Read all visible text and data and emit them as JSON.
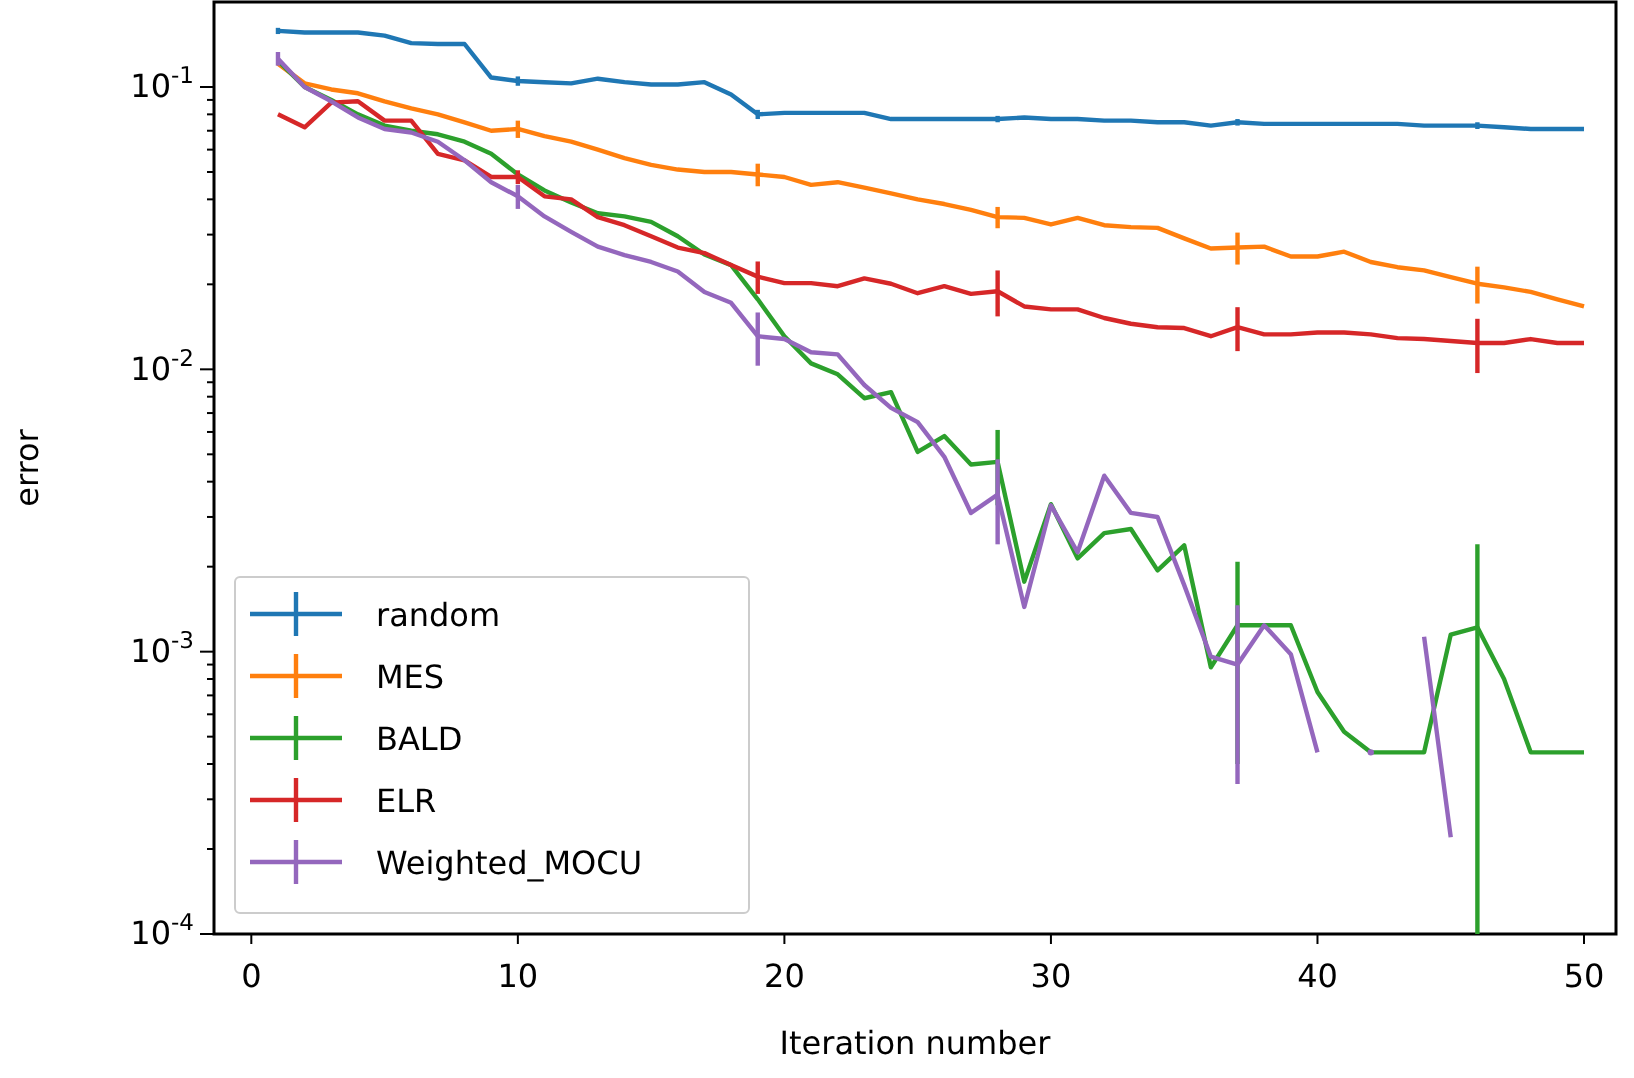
{
  "chart_data": {
    "type": "line",
    "xlabel": "Iteration number",
    "ylabel": "error",
    "log": "y",
    "legend": "bottom left",
    "grid": false,
    "marker": "none",
    "x": [
      1,
      2,
      3,
      4,
      5,
      6,
      7,
      8,
      9,
      10,
      11,
      12,
      13,
      14,
      15,
      16,
      17,
      18,
      19,
      20,
      21,
      22,
      23,
      24,
      25,
      26,
      27,
      28,
      29,
      30,
      31,
      32,
      33,
      34,
      35,
      36,
      37,
      38,
      39,
      40,
      41,
      42,
      43,
      44,
      45,
      46,
      47,
      48,
      49,
      50
    ],
    "xlim": [
      -1.4,
      51.2
    ],
    "xticks": [
      0,
      10,
      20,
      30,
      40,
      50
    ],
    "ylim": [
      0.0001,
      0.2
    ],
    "yticks": [
      {
        "value": 0.0001,
        "label": "10$^{-4}$"
      },
      {
        "value": 0.0002,
        "label": null
      },
      {
        "value": 0.0003,
        "label": null
      },
      {
        "value": 0.0004,
        "label": null
      },
      {
        "value": 0.0005,
        "label": null
      },
      {
        "value": 0.0006,
        "label": null
      },
      {
        "value": 0.0007,
        "label": null
      },
      {
        "value": 0.0008,
        "label": null
      },
      {
        "value": 0.0009,
        "label": null
      },
      {
        "value": 0.001,
        "label": "10$^{-3}$"
      },
      {
        "value": 0.002,
        "label": null
      },
      {
        "value": 0.003,
        "label": null
      },
      {
        "value": 0.004,
        "label": null
      },
      {
        "value": 0.005,
        "label": null
      },
      {
        "value": 0.006,
        "label": null
      },
      {
        "value": 0.007,
        "label": null
      },
      {
        "value": 0.008,
        "label": null
      },
      {
        "value": 0.009,
        "label": null
      },
      {
        "value": 0.01,
        "label": "10$^{-2}$"
      },
      {
        "value": 0.02,
        "label": null
      },
      {
        "value": 0.03,
        "label": null
      },
      {
        "value": 0.04,
        "label": null
      },
      {
        "value": 0.05,
        "label": null
      },
      {
        "value": 0.06,
        "label": null
      },
      {
        "value": 0.07,
        "label": null
      },
      {
        "value": 0.08,
        "label": null
      },
      {
        "value": 0.09,
        "label": null
      },
      {
        "value": 0.1,
        "label": "10$^{-1}$"
      }
    ],
    "series": [
      {
        "name": "random",
        "color": "#1f77b4",
        "values": [
          0.158,
          0.156,
          0.156,
          0.156,
          0.152,
          0.143,
          0.142,
          0.142,
          0.108,
          0.105,
          0.104,
          0.103,
          0.107,
          0.104,
          0.102,
          0.102,
          0.104,
          0.094,
          0.08,
          0.081,
          0.081,
          0.081,
          0.081,
          0.077,
          0.077,
          0.077,
          0.077,
          0.077,
          0.078,
          0.077,
          0.077,
          0.076,
          0.076,
          0.075,
          0.075,
          0.073,
          0.075,
          0.074,
          0.074,
          0.074,
          0.074,
          0.074,
          0.074,
          0.073,
          0.073,
          0.073,
          0.072,
          0.071,
          0.071,
          0.071
        ],
        "errors": [
          0.004,
          null,
          null,
          null,
          null,
          null,
          null,
          null,
          null,
          0.004,
          null,
          null,
          null,
          null,
          null,
          null,
          null,
          null,
          0.003,
          null,
          null,
          null,
          null,
          null,
          null,
          null,
          null,
          0.002,
          null,
          null,
          null,
          null,
          null,
          null,
          null,
          null,
          0.002,
          null,
          null,
          null,
          null,
          null,
          null,
          null,
          null,
          0.002,
          null,
          null,
          null,
          null
        ]
      },
      {
        "name": "MES",
        "color": "#ff7f0e",
        "values": [
          0.121,
          0.103,
          0.098,
          0.095,
          0.089,
          0.084,
          0.08,
          0.075,
          0.07,
          0.071,
          0.067,
          0.064,
          0.06,
          0.056,
          0.053,
          0.051,
          0.05,
          0.05,
          0.049,
          0.048,
          0.045,
          0.046,
          0.044,
          0.042,
          0.04,
          0.0385,
          0.0367,
          0.0346,
          0.0344,
          0.0326,
          0.0344,
          0.0324,
          0.0319,
          0.0317,
          0.0291,
          0.0268,
          0.027,
          0.0272,
          0.0251,
          0.0251,
          0.0261,
          0.024,
          0.023,
          0.0224,
          0.0212,
          0.0201,
          0.0195,
          0.0188,
          0.0177,
          0.0167
        ],
        "errors": [
          null,
          null,
          null,
          null,
          null,
          null,
          null,
          null,
          null,
          0.005,
          null,
          null,
          null,
          null,
          null,
          null,
          null,
          null,
          0.0045,
          null,
          null,
          null,
          null,
          null,
          null,
          null,
          null,
          0.003,
          null,
          null,
          null,
          null,
          null,
          null,
          null,
          null,
          0.0035,
          null,
          null,
          null,
          null,
          null,
          null,
          null,
          null,
          0.003,
          null,
          null,
          null,
          null
        ]
      },
      {
        "name": "BALD",
        "color": "#2ca02c",
        "values": [
          0.124,
          0.1,
          0.09,
          0.08,
          0.073,
          0.07,
          0.068,
          0.064,
          0.058,
          0.049,
          0.043,
          0.039,
          0.0357,
          0.0348,
          0.0333,
          0.0296,
          0.0255,
          0.0234,
          0.0177,
          0.0131,
          0.0105,
          0.0096,
          0.0079,
          0.0083,
          0.0051,
          0.0058,
          0.0046,
          0.0047,
          0.00177,
          0.00333,
          0.00214,
          0.00263,
          0.00272,
          0.00194,
          0.00238,
          0.00088,
          0.00124,
          0.00124,
          0.00124,
          0.00072,
          0.00052,
          0.00044,
          0.00044,
          0.00044,
          0.00115,
          0.00122,
          0.0008,
          0.00044,
          0.00044,
          0.00044
        ],
        "errors": [
          null,
          null,
          null,
          null,
          null,
          null,
          null,
          null,
          null,
          null,
          null,
          null,
          null,
          null,
          null,
          null,
          null,
          null,
          null,
          null,
          null,
          null,
          null,
          null,
          null,
          null,
          null,
          0.0014,
          null,
          null,
          null,
          null,
          null,
          null,
          null,
          null,
          0.00084,
          null,
          null,
          null,
          null,
          null,
          null,
          null,
          null,
          [
            0.0001,
            0.0024
          ],
          null,
          null,
          null,
          null
        ]
      },
      {
        "name": "ELR",
        "color": "#d62728",
        "values": [
          0.08,
          0.072,
          0.088,
          0.089,
          0.076,
          0.076,
          0.058,
          0.055,
          0.048,
          0.048,
          0.041,
          0.04,
          0.0346,
          0.0324,
          0.0296,
          0.027,
          0.0258,
          0.0234,
          0.0213,
          0.0202,
          0.0202,
          0.0197,
          0.021,
          0.0201,
          0.0186,
          0.0197,
          0.0185,
          0.0189,
          0.0167,
          0.0163,
          0.0163,
          0.0152,
          0.0145,
          0.0141,
          0.014,
          0.0131,
          0.0141,
          0.0133,
          0.0133,
          0.0135,
          0.0135,
          0.0133,
          0.0129,
          0.0128,
          0.0126,
          0.0124,
          0.0124,
          0.0128,
          0.0124,
          0.0124
        ],
        "errors": [
          null,
          null,
          null,
          null,
          null,
          null,
          null,
          null,
          null,
          0.0027,
          null,
          null,
          null,
          null,
          null,
          null,
          null,
          null,
          0.0028,
          null,
          null,
          null,
          null,
          null,
          null,
          null,
          null,
          0.0035,
          null,
          null,
          null,
          null,
          null,
          null,
          null,
          null,
          0.0025,
          null,
          null,
          null,
          null,
          null,
          null,
          null,
          null,
          0.0027,
          null,
          null,
          null,
          null
        ]
      },
      {
        "name": "Weighted_MOCU",
        "color": "#9467bd",
        "values": [
          0.126,
          0.1,
          0.089,
          0.078,
          0.071,
          0.069,
          0.064,
          0.055,
          0.046,
          0.041,
          0.0348,
          0.0307,
          0.0272,
          0.0254,
          0.024,
          0.0222,
          0.0188,
          0.0172,
          0.0131,
          0.0128,
          0.0115,
          0.0113,
          0.0088,
          0.0073,
          0.0065,
          0.0049,
          0.0031,
          0.0036,
          0.00144,
          0.0033,
          0.00225,
          0.0042,
          0.0031,
          0.003,
          0.00172,
          0.00096,
          0.0009,
          0.00124,
          0.00098,
          0.00044,
          null,
          0.00044,
          null,
          0.00113,
          0.00022,
          null,
          null,
          null,
          null,
          null
        ],
        "errors": [
          0.007,
          null,
          null,
          null,
          null,
          null,
          null,
          null,
          null,
          0.004,
          null,
          null,
          null,
          null,
          null,
          null,
          null,
          null,
          0.0028,
          null,
          null,
          null,
          null,
          null,
          null,
          null,
          null,
          0.0012,
          null,
          null,
          null,
          null,
          null,
          null,
          null,
          null,
          0.00056,
          null,
          null,
          null,
          null,
          null,
          null,
          null,
          null,
          null,
          null,
          null,
          null,
          null
        ]
      }
    ]
  }
}
